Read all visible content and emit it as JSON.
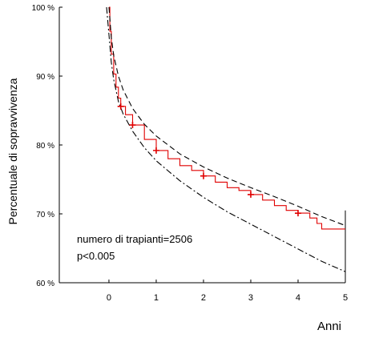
{
  "chart_data": {
    "type": "line",
    "xlabel": "Anni",
    "ylabel": "Percentuale di sopravvivenza",
    "x_ticks": [
      "0",
      "1",
      "2",
      "3",
      "4",
      "5"
    ],
    "y_ticks": [
      "60 %",
      "70 %",
      "80 %",
      "90 %",
      "100 %"
    ],
    "xlim": [
      -1.05,
      5.0
    ],
    "ylim": [
      60,
      100
    ],
    "grid": false,
    "legend": "none",
    "annotations": [
      "numero di trapianti=2506",
      "p<0.005"
    ],
    "colors": {
      "main": "#e00000",
      "bounds": "#000000"
    },
    "series": [
      {
        "style": "solid-step",
        "color": "#e00000",
        "x": [
          0,
          0.02,
          0.05,
          0.1,
          0.15,
          0.2,
          0.25,
          0.35,
          0.5,
          0.75,
          1.0,
          1.25,
          1.5,
          1.75,
          2.0,
          2.25,
          2.5,
          2.75,
          3.0,
          3.25,
          3.5,
          3.75,
          4.0,
          4.25,
          4.4,
          4.5,
          5.0
        ],
        "y": [
          100,
          96.5,
          93.2,
          90.3,
          88.4,
          86.8,
          85.6,
          84.4,
          82.9,
          80.8,
          79.2,
          78.0,
          77.0,
          76.3,
          75.5,
          74.6,
          73.8,
          73.4,
          72.8,
          72.0,
          71.2,
          70.5,
          70.1,
          69.4,
          68.6,
          67.8,
          67.8
        ]
      },
      {
        "style": "dashed",
        "color": "#000000",
        "x": [
          0.0,
          0.05,
          0.1,
          0.2,
          0.3,
          0.5,
          0.75,
          1.0,
          1.5,
          2.0,
          2.5,
          3.0,
          3.5,
          4.0,
          4.5,
          5.0
        ],
        "y": [
          100,
          95.6,
          93.0,
          90.0,
          88.0,
          85.3,
          83.0,
          81.3,
          78.7,
          76.8,
          75.2,
          73.8,
          72.5,
          71.1,
          69.6,
          68.3
        ]
      },
      {
        "style": "dash-dot",
        "color": "#000000",
        "x": [
          -0.05,
          0.0,
          0.05,
          0.1,
          0.2,
          0.3,
          0.5,
          0.75,
          1.0,
          1.5,
          2.0,
          2.5,
          3.0,
          3.5,
          4.0,
          4.5,
          5.0
        ],
        "y": [
          100,
          96.0,
          92.0,
          89.5,
          86.3,
          84.5,
          82.0,
          79.6,
          77.7,
          74.8,
          72.4,
          70.3,
          68.5,
          66.7,
          64.9,
          63.1,
          61.6
        ]
      }
    ],
    "censor_marks": {
      "x": [
        0.25,
        0.5,
        1.0,
        2.0,
        3.0,
        4.0
      ],
      "y": [
        85.6,
        82.9,
        79.2,
        75.5,
        72.8,
        70.1
      ]
    }
  }
}
